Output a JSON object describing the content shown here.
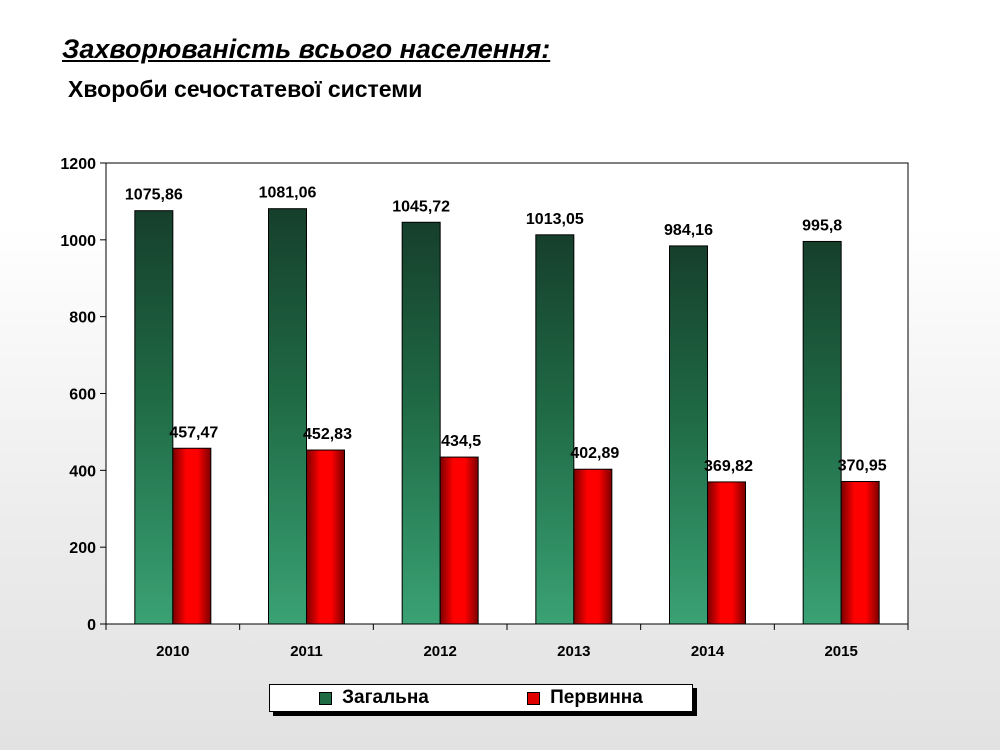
{
  "header": {
    "title": "Захворюваність всього населення:",
    "subtitle": "Хвороби сечостатевої системи"
  },
  "colors": {
    "series_1": "#1e6b44",
    "series_2": "#e00000"
  },
  "chart_data": {
    "type": "bar",
    "title": "",
    "xlabel": "",
    "ylabel": "",
    "ylim": [
      0,
      1200
    ],
    "yticks": [
      0,
      200,
      400,
      600,
      800,
      1000,
      1200
    ],
    "categories": [
      "2010",
      "2011",
      "2012",
      "2013",
      "2014",
      "2015"
    ],
    "series": [
      {
        "name": "Загальна",
        "values": [
          1075.86,
          1081.06,
          1045.72,
          1013.05,
          984.16,
          995.8
        ],
        "labels": [
          "1075,86",
          "1081,06",
          "1045,72",
          "1013,05",
          "984,16",
          "995,8"
        ]
      },
      {
        "name": "Первинна",
        "values": [
          457.47,
          452.83,
          434.5,
          402.89,
          369.82,
          370.95
        ],
        "labels": [
          "457,47",
          "452,83",
          "434,5",
          "402,89",
          "369,82",
          "370,95"
        ]
      }
    ],
    "grid": false,
    "legend": "bottom"
  }
}
